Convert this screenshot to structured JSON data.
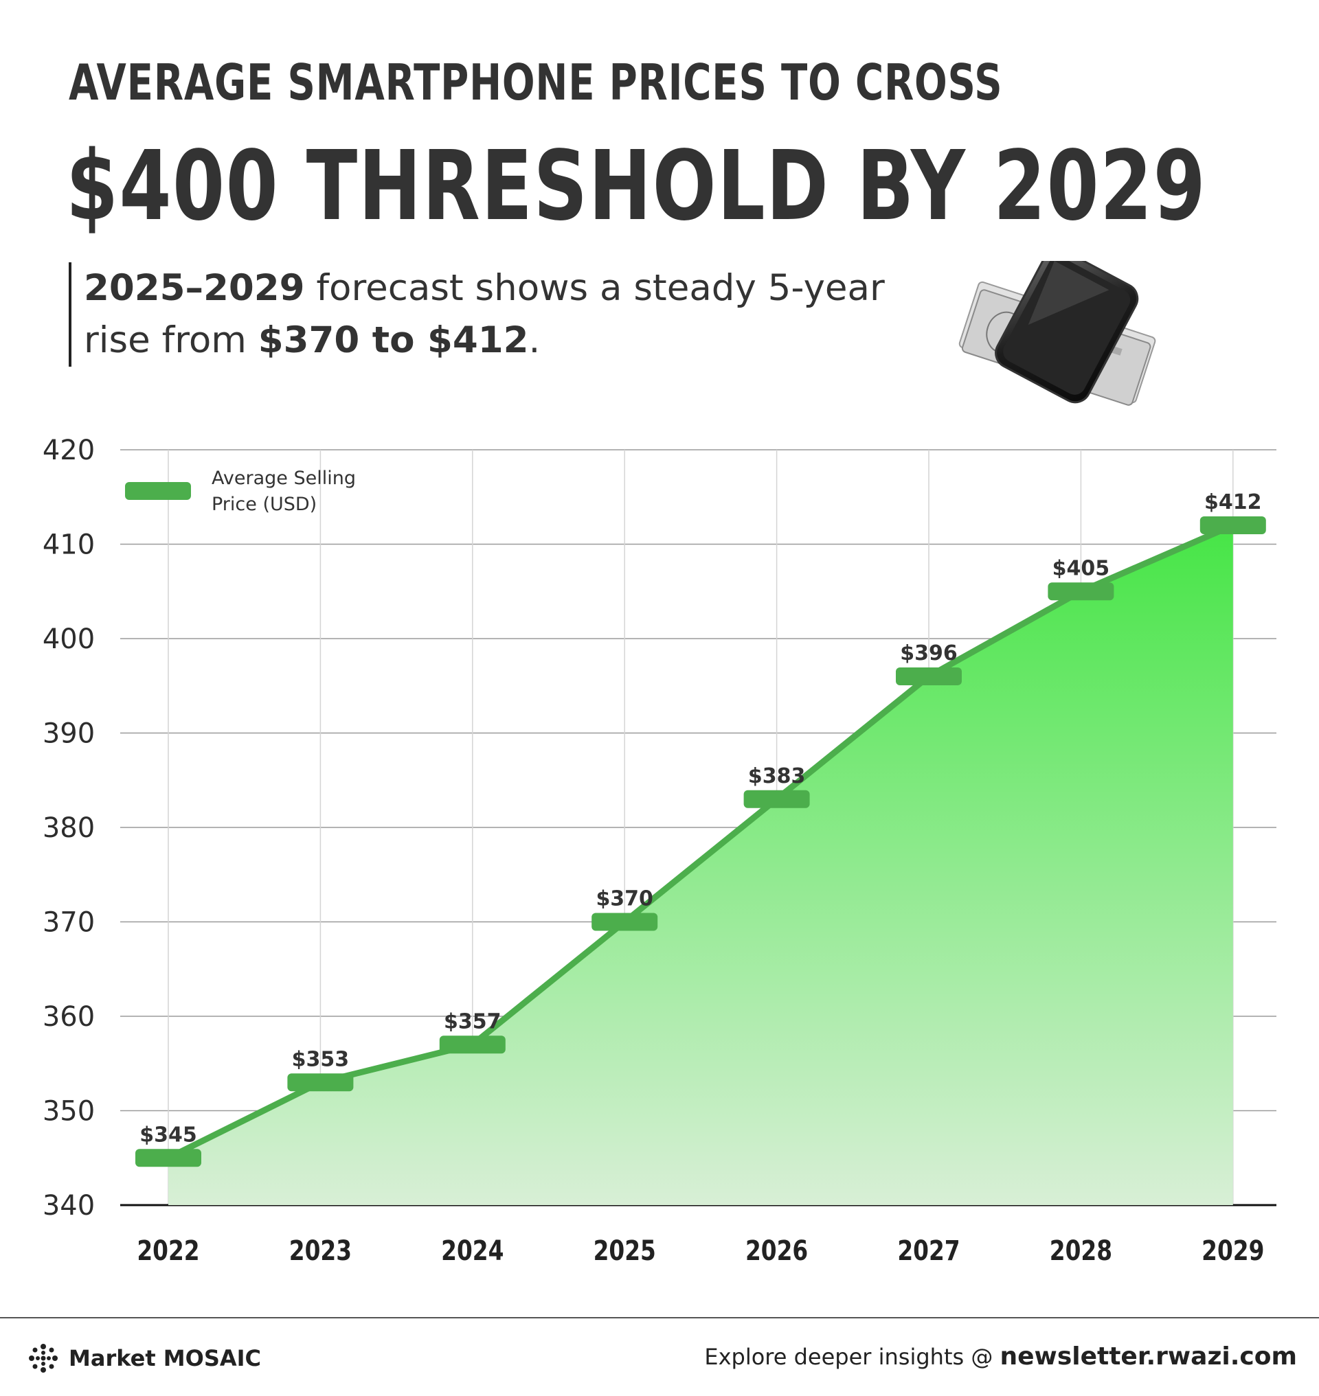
{
  "header": {
    "title_line1": "AVERAGE SMARTPHONE PRICES TO CROSS",
    "title_line2": "$400 THRESHOLD BY 2029",
    "subtitle_bold1": "2025–2029",
    "subtitle_text1": " forecast shows a steady 5-year",
    "subtitle_text2": "rise from ",
    "subtitle_bold2": "$370 to $412",
    "subtitle_text3": "."
  },
  "chart_data": {
    "type": "area",
    "title": "",
    "xlabel": "",
    "ylabel": "",
    "x": [
      "2022",
      "2023",
      "2024",
      "2025",
      "2026",
      "2027",
      "2028",
      "2029"
    ],
    "series": [
      {
        "name": "Average Selling Price (USD)",
        "values": [
          345,
          353,
          357,
          370,
          383,
          396,
          405,
          412
        ],
        "labels": [
          "$345",
          "$353",
          "$357",
          "$370",
          "$383",
          "$396",
          "$405",
          "$412"
        ],
        "color": "#4cae4c"
      }
    ],
    "ylim": [
      340,
      420
    ],
    "yticks": [
      340,
      350,
      360,
      370,
      380,
      390,
      400,
      410,
      420
    ],
    "grid": true,
    "legend": {
      "position": "top-left",
      "line1": "Average Selling",
      "line2": "Price (USD)"
    }
  },
  "footer": {
    "brand": "Market MOSAIC",
    "cta_text": "Explore deeper insights @ ",
    "cta_link": "newsletter.rwazi.com"
  },
  "colors": {
    "accent": "#4cae4c",
    "fill_top": "#46e546",
    "fill_bottom": "#d8efd6",
    "text": "#333333"
  },
  "icons": {
    "brand": "mosaic-dots-icon",
    "illustration": "smartphone-on-cash-icon"
  }
}
